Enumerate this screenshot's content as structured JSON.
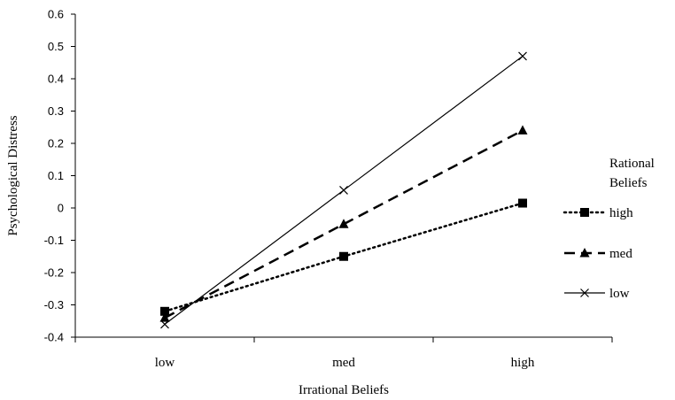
{
  "chart_data": {
    "type": "line",
    "title": "",
    "xlabel": "Irrational Beliefs",
    "ylabel": "Psychological Distress",
    "categories": [
      "low",
      "med",
      "high"
    ],
    "ylim": [
      -0.4,
      0.6
    ],
    "yticks": [
      "0.6",
      "0.5",
      "0.4",
      "0.3",
      "0.2",
      "0.1",
      "0",
      "-0.1",
      "-0.2",
      "-0.3",
      "-0.4"
    ],
    "legend_title": [
      "Rational",
      "Beliefs"
    ],
    "legend_position": "right",
    "grid": false,
    "series": [
      {
        "name": "high",
        "values": [
          -0.32,
          -0.15,
          0.015
        ],
        "marker": "square",
        "line": "dotted",
        "color": "#000000"
      },
      {
        "name": "med",
        "values": [
          -0.34,
          -0.05,
          0.24
        ],
        "marker": "triangle",
        "line": "dashed",
        "color": "#000000"
      },
      {
        "name": "low",
        "values": [
          -0.36,
          0.055,
          0.47
        ],
        "marker": "x",
        "line": "solid",
        "color": "#000000"
      }
    ]
  }
}
